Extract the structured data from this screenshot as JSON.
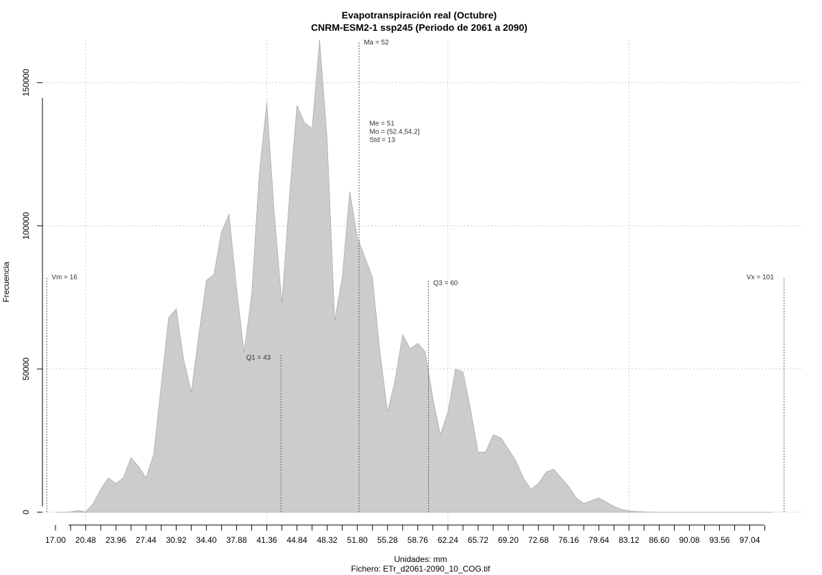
{
  "chart_data": {
    "type": "area",
    "title": "Evapotranspiración real (Octubre)",
    "subtitle": "CNRM-ESM2-1 ssp245 (Periodo de 2061 a 2090)",
    "xlabel": "Unidades: mm",
    "ylabel": "Frecuencia",
    "caption": "Fichero: ETr_d2061-2090_10_COG.tif",
    "xlim": [
      15.5,
      103
    ],
    "ylim": [
      -4500,
      165000
    ],
    "x_ticks": [
      17.0,
      20.48,
      23.96,
      27.44,
      30.92,
      34.4,
      37.88,
      41.36,
      44.84,
      48.32,
      51.8,
      55.28,
      58.76,
      62.24,
      65.72,
      69.2,
      72.68,
      76.16,
      79.64,
      83.12,
      86.6,
      90.08,
      93.56,
      97.04
    ],
    "x_tick_labels": [
      "17.00",
      "20.48",
      "23.96",
      "27.44",
      "30.92",
      "34.40",
      "37.88",
      "41.36",
      "44.84",
      "48.32",
      "51.80",
      "55.28",
      "58.76",
      "62.24",
      "65.72",
      "69.20",
      "72.68",
      "76.16",
      "79.64",
      "83.12",
      "86.60",
      "90.08",
      "93.56",
      "97.04"
    ],
    "y_ticks": [
      0,
      50000,
      100000,
      150000
    ],
    "y_tick_labels": [
      "0",
      "50000",
      "100000",
      "150000"
    ],
    "grid": true,
    "series": [
      {
        "color": "#cccccc",
        "x": [
          17.0,
          17.87,
          18.74,
          19.61,
          20.48,
          21.35,
          22.22,
          23.09,
          23.96,
          24.83,
          25.7,
          26.57,
          27.44,
          28.31,
          29.18,
          30.05,
          30.92,
          31.79,
          32.66,
          33.53,
          34.4,
          35.27,
          36.14,
          37.01,
          37.88,
          38.75,
          39.62,
          40.49,
          41.36,
          42.23,
          43.1,
          43.97,
          44.84,
          45.71,
          46.58,
          47.45,
          48.32,
          49.19,
          50.06,
          50.93,
          51.8,
          52.67,
          53.54,
          54.41,
          55.28,
          56.15,
          57.02,
          57.89,
          58.76,
          59.63,
          60.5,
          61.37,
          62.24,
          63.11,
          63.98,
          64.85,
          65.72,
          66.59,
          67.46,
          68.33,
          69.2,
          70.07,
          70.94,
          71.81,
          72.68,
          73.55,
          74.42,
          75.29,
          76.16,
          77.03,
          77.9,
          78.77,
          79.64,
          80.51,
          81.38,
          82.25,
          83.12,
          83.99,
          84.86,
          85.73,
          86.6,
          87.47,
          88.34,
          89.21,
          90.08,
          90.95,
          91.82,
          92.69,
          93.56,
          94.43,
          95.3,
          96.17,
          97.04,
          97.91,
          98.78,
          99.65
        ],
        "values": [
          0,
          0,
          100,
          600,
          100,
          3000,
          8000,
          12000,
          10000,
          12000,
          19000,
          16000,
          12000,
          20000,
          44000,
          68000,
          71000,
          53000,
          42000,
          62000,
          81000,
          83000,
          98000,
          104000,
          78000,
          56000,
          76000,
          118000,
          143000,
          104000,
          73000,
          110000,
          142000,
          136000,
          134000,
          165000,
          130000,
          67000,
          82000,
          112000,
          96000,
          89000,
          82000,
          56000,
          35000,
          46000,
          62000,
          57000,
          59000,
          56000,
          40000,
          27000,
          35000,
          50000,
          49000,
          36000,
          21000,
          21000,
          27000,
          26000,
          22000,
          18000,
          12000,
          8000,
          10000,
          14000,
          15000,
          12000,
          9000,
          5000,
          3000,
          4000,
          5000,
          3500,
          2000,
          1000,
          500,
          200,
          100,
          50,
          0,
          0,
          0,
          0,
          0,
          0,
          0,
          0,
          0,
          0,
          0,
          0,
          0,
          0,
          0,
          0
        ]
      }
    ],
    "annotations": [
      {
        "label": "Vm = 16",
        "x": 16.0,
        "line_top": 82000,
        "label_y": 82000,
        "label_side": "right"
      },
      {
        "label": "Q1 = 43",
        "x": 43.0,
        "line_top": 55000,
        "label_y": 54000,
        "label_side": "left"
      },
      {
        "label": "Ma = 52",
        "x": 52.0,
        "line_top": 164000,
        "label_y": 164000,
        "label_side": "right"
      },
      {
        "label": "Q3 = 60",
        "x": 60.0,
        "line_top": 81000,
        "label_y": 80000,
        "label_side": "right"
      },
      {
        "label": "Vx = 101",
        "x": 101.0,
        "line_top": 82000,
        "label_y": 82000,
        "label_side": "left"
      }
    ],
    "stats_text": [
      "Me = 51",
      "Mo = (52.4,54.2]",
      "Std = 13"
    ],
    "stats_anchor": {
      "x": 53.2,
      "y": 135000
    }
  }
}
